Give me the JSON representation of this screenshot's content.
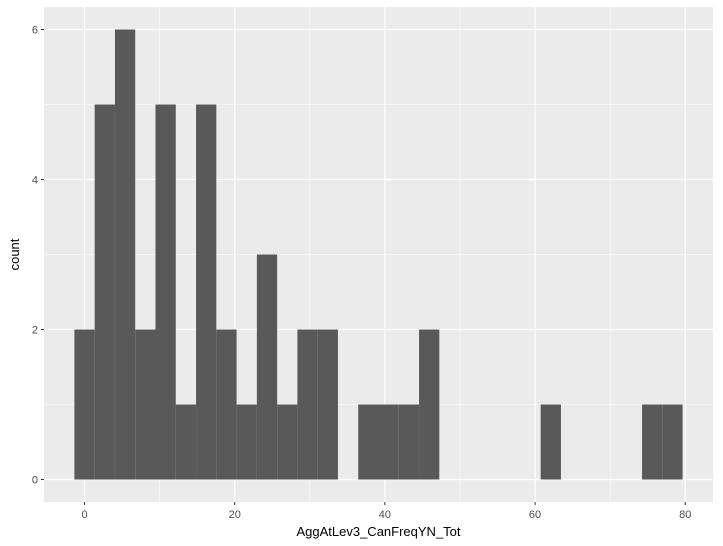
{
  "chart_data": {
    "type": "bar",
    "title": "",
    "xlabel": "AggAtLev3_CanFreqYN_Tot",
    "ylabel": "count",
    "bin_width": 2.7,
    "bins": [
      {
        "x0": -1.35,
        "x1": 1.35,
        "count": 2
      },
      {
        "x0": 1.35,
        "x1": 4.05,
        "count": 5
      },
      {
        "x0": 4.05,
        "x1": 6.75,
        "count": 6
      },
      {
        "x0": 6.75,
        "x1": 9.45,
        "count": 2
      },
      {
        "x0": 9.45,
        "x1": 12.15,
        "count": 5
      },
      {
        "x0": 12.15,
        "x1": 14.85,
        "count": 1
      },
      {
        "x0": 14.85,
        "x1": 17.55,
        "count": 5
      },
      {
        "x0": 17.55,
        "x1": 20.25,
        "count": 2
      },
      {
        "x0": 20.25,
        "x1": 22.95,
        "count": 1
      },
      {
        "x0": 22.95,
        "x1": 25.65,
        "count": 3
      },
      {
        "x0": 25.65,
        "x1": 28.35,
        "count": 1
      },
      {
        "x0": 28.35,
        "x1": 31.05,
        "count": 2
      },
      {
        "x0": 31.05,
        "x1": 33.75,
        "count": 2
      },
      {
        "x0": 36.45,
        "x1": 39.15,
        "count": 1
      },
      {
        "x0": 39.15,
        "x1": 41.85,
        "count": 1
      },
      {
        "x0": 41.85,
        "x1": 44.55,
        "count": 1
      },
      {
        "x0": 44.55,
        "x1": 47.25,
        "count": 2
      },
      {
        "x0": 60.75,
        "x1": 63.45,
        "count": 1
      },
      {
        "x0": 74.25,
        "x1": 76.95,
        "count": 1
      },
      {
        "x0": 76.95,
        "x1": 79.65,
        "count": 1
      }
    ],
    "x_ticks": [
      0,
      20,
      40,
      60,
      80
    ],
    "x_tick_labels": [
      "0",
      "20",
      "40",
      "60",
      "80"
    ],
    "y_ticks": [
      0,
      2,
      4,
      6
    ],
    "y_tick_labels": [
      "0",
      "2",
      "4",
      "6"
    ],
    "xlim": [
      -5.4,
      83.7
    ],
    "ylim": [
      -0.3,
      6.3
    ],
    "grid": true,
    "colors": {
      "panel": "#ebebeb",
      "grid": "#ffffff",
      "bar": "#595959",
      "tick_text": "#4d4d4d",
      "tick_mark": "#333333",
      "title_text": "#000000"
    }
  }
}
